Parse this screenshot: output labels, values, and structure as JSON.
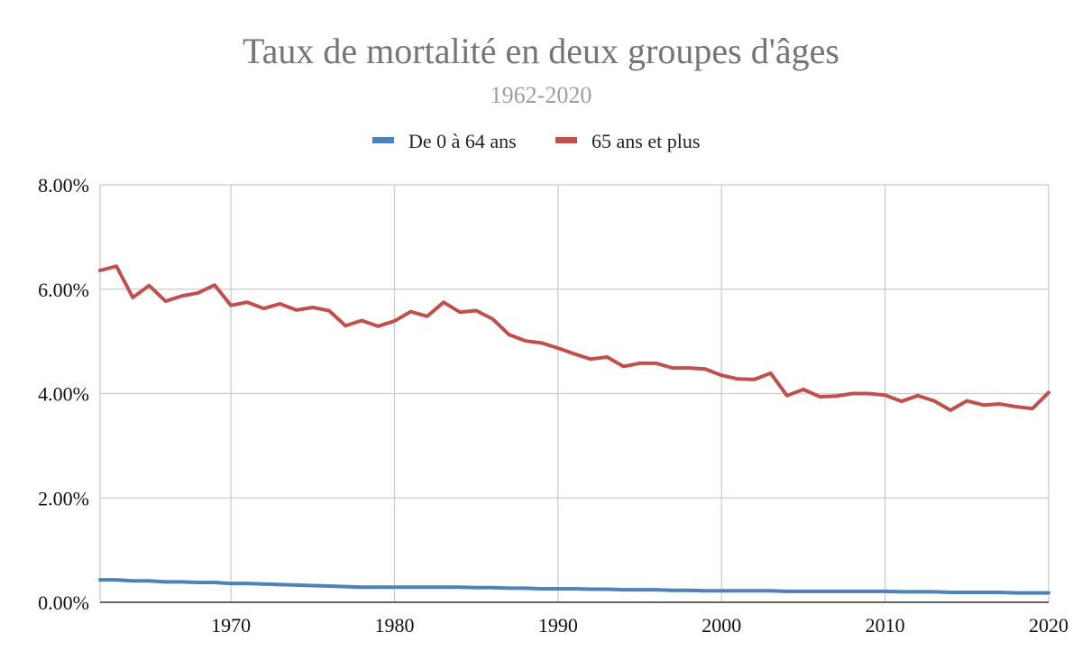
{
  "chart_data": {
    "type": "line",
    "title": "Taux de mortalité en deux groupes d'âges",
    "subtitle": "1962-2020",
    "xlabel": "",
    "ylabel": "",
    "xlim": [
      1962,
      2020
    ],
    "ylim": [
      0,
      0.08
    ],
    "x_ticks": [
      1970,
      1980,
      1990,
      2000,
      2010,
      2020
    ],
    "y_ticks": [
      0,
      0.02,
      0.04,
      0.06,
      0.08
    ],
    "y_tick_labels": [
      "0.00%",
      "2.00%",
      "4.00%",
      "6.00%",
      "8.00%"
    ],
    "grid": true,
    "legend_position": "top",
    "x": [
      1962,
      1963,
      1964,
      1965,
      1966,
      1967,
      1968,
      1969,
      1970,
      1971,
      1972,
      1973,
      1974,
      1975,
      1976,
      1977,
      1978,
      1979,
      1980,
      1981,
      1982,
      1983,
      1984,
      1985,
      1986,
      1987,
      1988,
      1989,
      1990,
      1991,
      1992,
      1993,
      1994,
      1995,
      1996,
      1997,
      1998,
      1999,
      2000,
      2001,
      2002,
      2003,
      2004,
      2005,
      2006,
      2007,
      2008,
      2009,
      2010,
      2011,
      2012,
      2013,
      2014,
      2015,
      2016,
      2017,
      2018,
      2019,
      2020
    ],
    "series": [
      {
        "name": "De 0 à 64 ans",
        "color": "#4f81bd",
        "values": [
          0.0043,
          0.0043,
          0.0041,
          0.0041,
          0.0039,
          0.0039,
          0.0038,
          0.0038,
          0.0036,
          0.0036,
          0.0035,
          0.0034,
          0.0033,
          0.0032,
          0.0031,
          0.003,
          0.0029,
          0.0029,
          0.0029,
          0.0029,
          0.0029,
          0.0029,
          0.0029,
          0.0028,
          0.0028,
          0.0027,
          0.0027,
          0.0026,
          0.0026,
          0.0026,
          0.0025,
          0.0025,
          0.0024,
          0.0024,
          0.0024,
          0.0023,
          0.0023,
          0.0022,
          0.0022,
          0.0022,
          0.0022,
          0.0022,
          0.0021,
          0.0021,
          0.0021,
          0.0021,
          0.0021,
          0.0021,
          0.0021,
          0.002,
          0.002,
          0.002,
          0.0019,
          0.0019,
          0.0019,
          0.0019,
          0.0018,
          0.0018,
          0.0018
        ]
      },
      {
        "name": "65 ans et plus",
        "color": "#c0504d",
        "values": [
          0.0636,
          0.0644,
          0.0584,
          0.0607,
          0.0577,
          0.0587,
          0.0593,
          0.0608,
          0.0569,
          0.0575,
          0.0563,
          0.0572,
          0.056,
          0.0565,
          0.0559,
          0.053,
          0.054,
          0.0529,
          0.0539,
          0.0557,
          0.0548,
          0.0575,
          0.0556,
          0.0559,
          0.0543,
          0.0513,
          0.0501,
          0.0497,
          0.0487,
          0.0476,
          0.0466,
          0.047,
          0.0452,
          0.0458,
          0.0458,
          0.0449,
          0.0449,
          0.0447,
          0.0435,
          0.0428,
          0.0427,
          0.0439,
          0.0396,
          0.0408,
          0.0394,
          0.0395,
          0.04,
          0.04,
          0.0397,
          0.0385,
          0.0396,
          0.0386,
          0.0368,
          0.0386,
          0.0378,
          0.038,
          0.0375,
          0.0371,
          0.0402
        ]
      }
    ]
  }
}
